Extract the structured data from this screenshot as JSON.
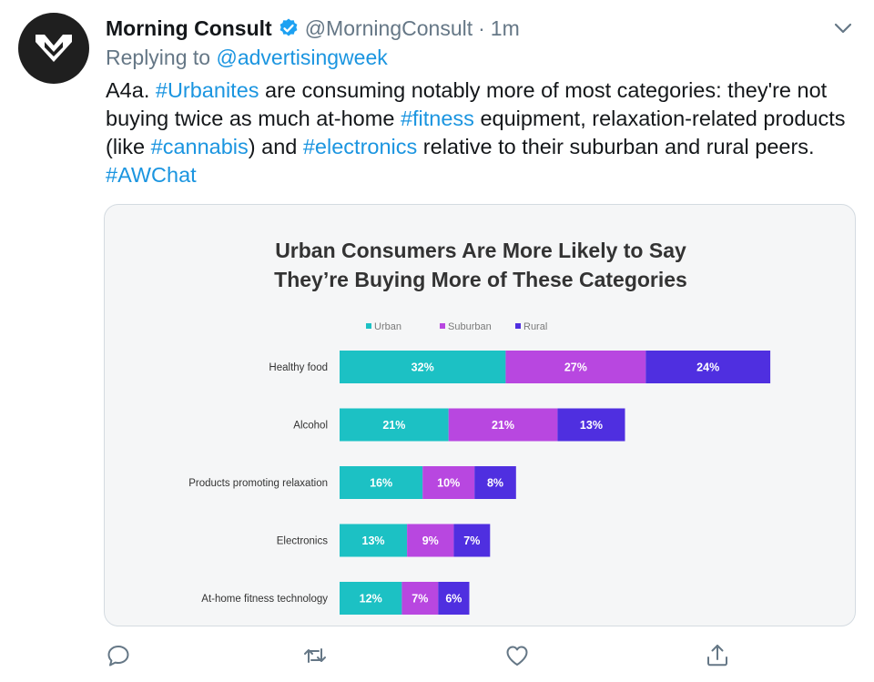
{
  "tweet": {
    "author_name": "Morning Consult",
    "handle": "@MorningConsult",
    "separator": "·",
    "time": "1m",
    "replying_prefix": "Replying to",
    "replying_to": "@advertisingweek",
    "text_segments": [
      {
        "t": "A4a. ",
        "h": false
      },
      {
        "t": "#Urbanites",
        "h": true
      },
      {
        "t": " are consuming notably more of most categories: they're not buying twice as much at-home ",
        "h": false
      },
      {
        "t": "#fitness",
        "h": true
      },
      {
        "t": " equipment, relaxation-related products (like ",
        "h": false
      },
      {
        "t": "#cannabis",
        "h": true
      },
      {
        "t": ") and ",
        "h": false
      },
      {
        "t": "#electronics",
        "h": true
      },
      {
        "t": " relative to their suburban and rural peers. ",
        "h": false
      },
      {
        "t": "#AWChat",
        "h": true
      }
    ],
    "icons": {
      "avatar": "morning-consult-logo",
      "verified": "verified-badge-icon",
      "menu": "chevron-down-icon",
      "reply": "comment-icon",
      "retweet": "retweet-icon",
      "like": "heart-icon",
      "share": "share-icon"
    },
    "colors": {
      "link": "#1b95e0",
      "muted": "#657786",
      "verified": "#1da1f2"
    }
  },
  "chart_data": {
    "type": "bar",
    "orientation": "horizontal",
    "stacked": true,
    "title_lines": [
      "Urban Consumers Are More Likely to Say",
      "They’re Buying More of These Categories"
    ],
    "legend_placement": "top-center",
    "categories": [
      "Healthy food",
      "Alcohol",
      "Products promoting relaxation",
      "Electronics",
      "At-home fitness technology"
    ],
    "series": [
      {
        "name": "Urban",
        "color": "#1cc1c4",
        "values": [
          32,
          21,
          16,
          13,
          12
        ]
      },
      {
        "name": "Suburban",
        "color": "#b847e0",
        "values": [
          27,
          21,
          10,
          9,
          7
        ]
      },
      {
        "name": "Rural",
        "color": "#4f2fe0",
        "values": [
          24,
          13,
          8,
          7,
          6
        ]
      }
    ],
    "value_suffix": "%",
    "grid": false
  }
}
